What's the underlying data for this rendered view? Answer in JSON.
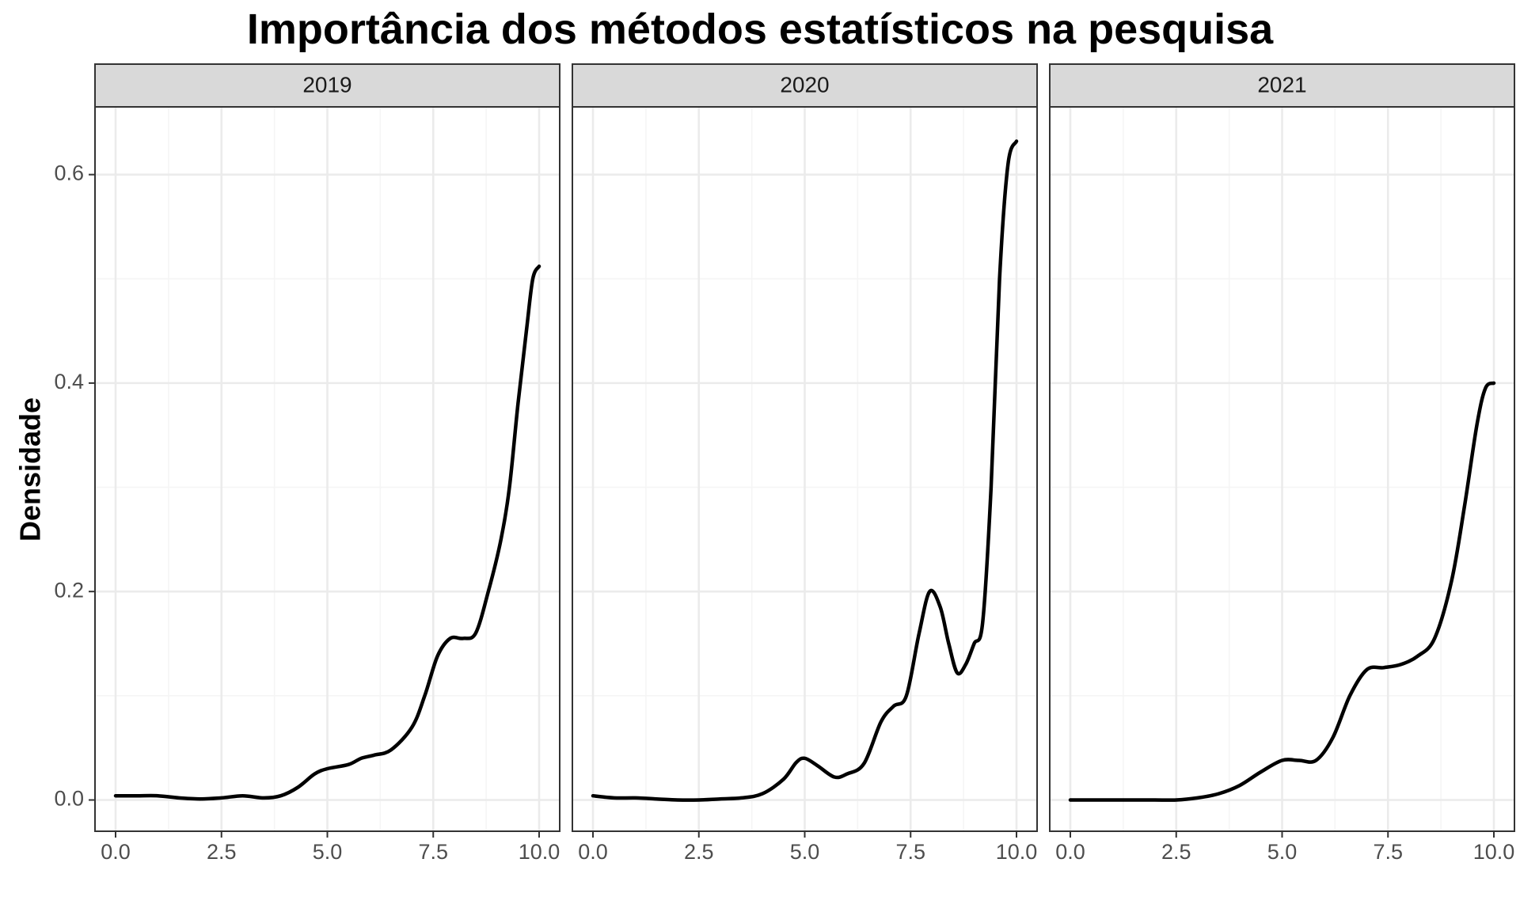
{
  "chart_data": {
    "type": "line",
    "title": "Importância dos métodos estatísticos na pesquisa",
    "xlabel": "",
    "ylabel": "Densidade",
    "xlim": [
      0,
      10
    ],
    "ylim": [
      -0.03,
      0.665
    ],
    "x_ticks": [
      "0.0",
      "2.5",
      "5.0",
      "7.5",
      "10.0"
    ],
    "y_ticks": [
      "0.0",
      "0.2",
      "0.4",
      "0.6"
    ],
    "grid": true,
    "facets": [
      {
        "label": "2019",
        "x": [
          0,
          0.5,
          1,
          1.5,
          2,
          2.5,
          3,
          3.5,
          3.9,
          4.3,
          4.7,
          5,
          5.5,
          5.8,
          6.1,
          6.5,
          7,
          7.3,
          7.6,
          7.9,
          8.2,
          8.5,
          8.8,
          9.1,
          9.3,
          9.5,
          9.7,
          9.85,
          10
        ],
        "y": [
          0.004,
          0.004,
          0.004,
          0.002,
          0.001,
          0.002,
          0.004,
          0.002,
          0.004,
          0.012,
          0.025,
          0.03,
          0.034,
          0.04,
          0.043,
          0.048,
          0.07,
          0.1,
          0.138,
          0.155,
          0.155,
          0.16,
          0.2,
          0.25,
          0.3,
          0.38,
          0.45,
          0.5,
          0.512
        ]
      },
      {
        "label": "2020",
        "x": [
          0,
          0.5,
          1,
          1.5,
          2,
          2.5,
          3,
          3.5,
          4,
          4.5,
          4.8,
          5,
          5.3,
          5.7,
          6,
          6.4,
          6.8,
          7.1,
          7.4,
          7.7,
          7.95,
          8.2,
          8.4,
          8.6,
          8.8,
          9,
          9.2,
          9.4,
          9.6,
          9.8,
          10
        ],
        "y": [
          0.004,
          0.002,
          0.002,
          0.001,
          0.0,
          0.0,
          0.001,
          0.002,
          0.006,
          0.02,
          0.036,
          0.04,
          0.033,
          0.022,
          0.025,
          0.035,
          0.075,
          0.09,
          0.1,
          0.16,
          0.2,
          0.185,
          0.15,
          0.122,
          0.13,
          0.15,
          0.17,
          0.3,
          0.5,
          0.61,
          0.632
        ]
      },
      {
        "label": "2021",
        "x": [
          0,
          0.5,
          1,
          1.5,
          2,
          2.5,
          3,
          3.5,
          4,
          4.5,
          5,
          5.4,
          5.8,
          6.2,
          6.6,
          7,
          7.4,
          7.8,
          8.2,
          8.6,
          9,
          9.3,
          9.6,
          9.8,
          10
        ],
        "y": [
          0.0,
          0.0,
          0.0,
          0.0,
          0.0,
          0.0,
          0.002,
          0.006,
          0.014,
          0.027,
          0.038,
          0.038,
          0.038,
          0.06,
          0.1,
          0.125,
          0.127,
          0.13,
          0.138,
          0.155,
          0.21,
          0.28,
          0.36,
          0.395,
          0.4
        ]
      }
    ]
  },
  "colors": {
    "panel_border": "#333333",
    "strip_fill": "#d9d9d9",
    "grid_major": "#ebebeb",
    "grid_minor": "#f5f5f5",
    "line": "#000000",
    "tick_text": "#4d4d4d"
  }
}
